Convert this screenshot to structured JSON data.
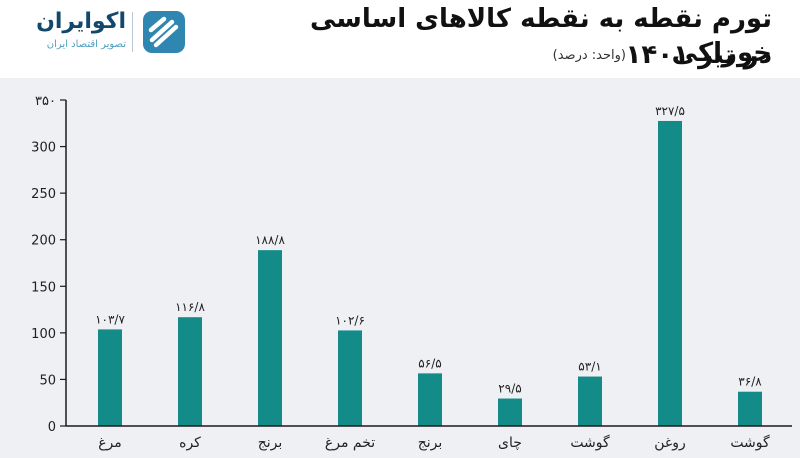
{
  "brand": {
    "name": "اکوایران",
    "tagline": "تصویر اقتصاد ایران",
    "color": "#12486b",
    "accent": "#4f9ec0"
  },
  "header": {
    "title_line1": "تورم نقطه به نقطه کالاهای اساسی خوراکی",
    "title_line2": "در تیر ۱۴۰۱",
    "unit": "(واحد: درصد)"
  },
  "chart_data": {
    "type": "bar",
    "categories": [
      "مرغ",
      "کره",
      "برنج",
      "تخم مرغ",
      "برنج",
      "چای",
      "گوشت",
      "روغن",
      "گوشت"
    ],
    "values": [
      103.7,
      116.8,
      188.8,
      102.6,
      56.5,
      29.5,
      53.1,
      327.5,
      36.8
    ],
    "value_labels": [
      "۱۰۳/۷",
      "۱۱۶/۸",
      "۱۸۸/۸",
      "۱۰۲/۶",
      "۵۶/۵",
      "۲۹/۵",
      "۵۳/۱",
      "۳۲۷/۵",
      "۳۶/۸"
    ],
    "yticks": [
      0,
      50,
      100,
      150,
      200,
      250,
      300,
      350
    ],
    "ytick_labels": [
      "0",
      "50",
      "100",
      "150",
      "200",
      "250",
      "300",
      "۳۵۰"
    ],
    "ylim": [
      0,
      350
    ],
    "bar_color": "#138b89",
    "axis_color": "#1a1a1a"
  }
}
